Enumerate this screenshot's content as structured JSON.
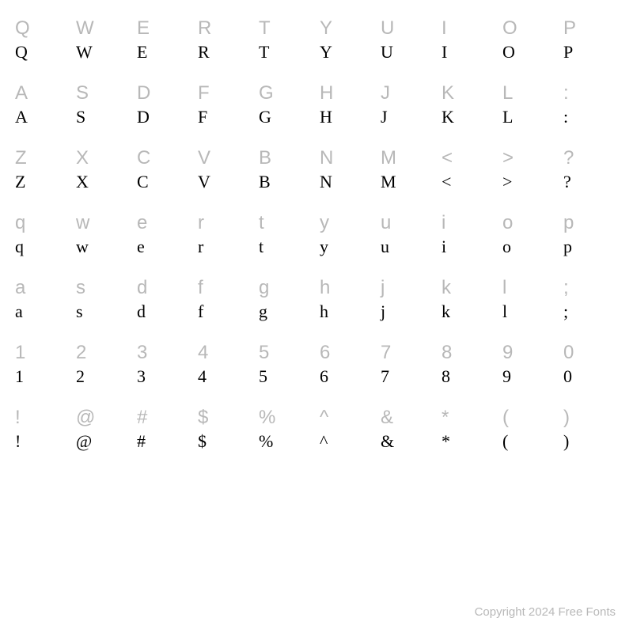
{
  "grid": {
    "rows": [
      {
        "labels": [
          "Q",
          "W",
          "E",
          "R",
          "T",
          "Y",
          "U",
          "I",
          "O",
          "P"
        ],
        "samples": [
          "Q",
          "W",
          "E",
          "R",
          "T",
          "Y",
          "U",
          "I",
          "O",
          "P"
        ]
      },
      {
        "labels": [
          "A",
          "S",
          "D",
          "F",
          "G",
          "H",
          "J",
          "K",
          "L",
          ":"
        ],
        "samples": [
          "A",
          "S",
          "D",
          "F",
          "G",
          "H",
          "J",
          "K",
          "L",
          ":"
        ]
      },
      {
        "labels": [
          "Z",
          "X",
          "C",
          "V",
          "B",
          "N",
          "M",
          "<",
          ">",
          "?"
        ],
        "samples": [
          "Z",
          "X",
          "C",
          "V",
          "B",
          "N",
          "M",
          "<",
          ">",
          "?"
        ]
      },
      {
        "labels": [
          "q",
          "w",
          "e",
          "r",
          "t",
          "y",
          "u",
          "i",
          "o",
          "p"
        ],
        "samples": [
          "q",
          "w",
          "e",
          "r",
          "t",
          "y",
          "u",
          "i",
          "o",
          "p"
        ]
      },
      {
        "labels": [
          "a",
          "s",
          "d",
          "f",
          "g",
          "h",
          "j",
          "k",
          "l",
          ";"
        ],
        "samples": [
          "a",
          "s",
          "d",
          "f",
          "g",
          "h",
          "j",
          "k",
          "l",
          ";"
        ]
      },
      {
        "labels": [
          "1",
          "2",
          "3",
          "4",
          "5",
          "6",
          "7",
          "8",
          "9",
          "0"
        ],
        "samples": [
          "1",
          "2",
          "3",
          "4",
          "5",
          "6",
          "7",
          "8",
          "9",
          "0"
        ]
      },
      {
        "labels": [
          "!",
          "@",
          "#",
          "$",
          "%",
          "^",
          "&",
          "*",
          "(",
          ")"
        ],
        "samples": [
          "!",
          "@",
          "#",
          "$",
          "%",
          "^",
          "&",
          "*",
          "(",
          ")"
        ]
      }
    ],
    "columns": 10
  },
  "styling": {
    "label_color": "#b8b8b8",
    "sample_color": "#000000",
    "background_color": "#ffffff",
    "label_font_family": "sans-serif",
    "sample_font_family": "serif",
    "label_fontsize": 24,
    "sample_fontsize": 22,
    "copyright_color": "#b8b8b8",
    "copyright_fontsize": 15
  },
  "footer": {
    "copyright": "Copyright 2024 Free Fonts"
  }
}
